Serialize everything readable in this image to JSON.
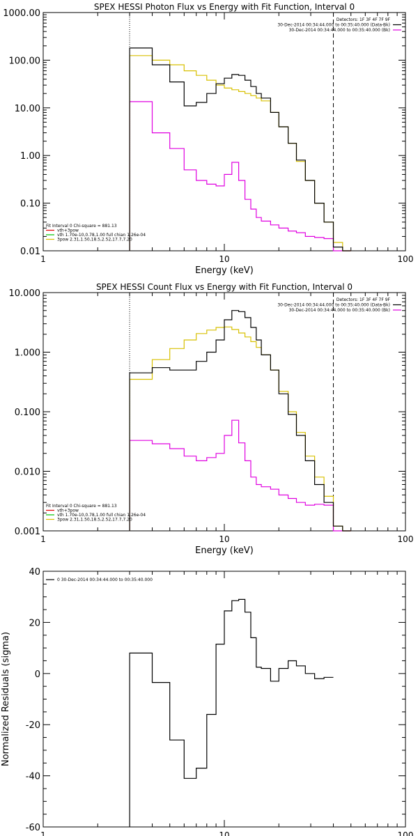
{
  "chart_data": [
    {
      "type": "line",
      "title": "SPEX HESSI Photon Flux vs Energy with Fit Function, Interval 0",
      "xlabel": "Energy (keV)",
      "ylabel": "",
      "xscale": "log",
      "yscale": "log",
      "xlim": [
        1,
        100
      ],
      "ylim": [
        0.01,
        1000
      ],
      "xtick_labels": [
        "1",
        "10",
        "100"
      ],
      "ytick_labels": [
        "0.01",
        "0.10",
        "1.00",
        "10.00",
        "100.00",
        "1000.00"
      ],
      "legend_right": [
        "Detectors: 1F 3F 4F 7F 9F",
        "30-Dec-2014 00:34:44.000 to 00:35:40.000 (Data-Bk)",
        "30-Dec-2014 00:34:44.000 to 00:35:40.000 (Bk)"
      ],
      "legend_left": [
        "Fit Interval 0   Chi-square = 881.13",
        "vth+3pow",
        "vth 1.70e-10,0.78,1.00   full chian 1.26e-04",
        "3pow 2.31,1.50,18.5,2.52,17.7,7.20"
      ],
      "vlines": [
        {
          "x": 3.0,
          "style": "dotted"
        },
        {
          "x": 40.0,
          "style": "dashed"
        }
      ],
      "edges": [
        3.0,
        4.0,
        5.0,
        6.0,
        7.0,
        8.0,
        9.0,
        10.0,
        11.0,
        12.0,
        13.0,
        14.0,
        15.0,
        16.0,
        18.0,
        20.0,
        22.5,
        25.0,
        28.0,
        31.5,
        35.5,
        40.0,
        45.0,
        50.0
      ],
      "series": [
        {
          "name": "Data-Bk",
          "color": "#000000",
          "values": [
            180,
            80,
            35,
            11,
            13,
            20,
            32,
            42,
            50,
            48,
            38,
            28,
            20,
            16,
            8,
            4,
            1.8,
            0.8,
            0.3,
            0.1,
            0.04,
            0.012,
            0.01
          ]
        },
        {
          "name": "vth+3pow",
          "color": "#d8c000",
          "values": [
            125,
            100,
            80,
            60,
            48,
            38,
            30,
            26,
            24,
            22,
            20,
            18,
            16,
            14,
            8,
            4,
            1.8,
            0.75,
            0.3,
            0.1,
            0.04,
            0.015,
            0.01
          ]
        },
        {
          "name": "Bk",
          "color": "#e000e0",
          "values": [
            13.5,
            3,
            1.4,
            0.5,
            0.3,
            0.25,
            0.23,
            0.4,
            0.72,
            0.3,
            0.12,
            0.075,
            0.05,
            0.042,
            0.035,
            0.03,
            0.026,
            0.024,
            0.02,
            0.019,
            0.018,
            0.01,
            0.01
          ]
        }
      ]
    },
    {
      "type": "line",
      "title": "SPEX HESSI Count Flux vs Energy with Fit Function, Interval 0",
      "xlabel": "Energy (keV)",
      "ylabel": "",
      "xscale": "log",
      "yscale": "log",
      "xlim": [
        1,
        100
      ],
      "ylim": [
        0.001,
        10
      ],
      "xtick_labels": [
        "1",
        "10",
        "100"
      ],
      "ytick_labels": [
        "0.001",
        "0.010",
        "0.100",
        "1.000",
        "10.000"
      ],
      "legend_right": [
        "Detectors: 1F 3F 4F 7F 9F",
        "30-Dec-2014 00:34:44.000 to 00:35:40.000 (Data-Bk)",
        "30-Dec-2014 00:34:44.000 to 00:35:40.000 (Bk)"
      ],
      "legend_left": [
        "Fit Interval 0   Chi-square = 881.13",
        "vth+3pow",
        "vth 1.70e-10,0.78,1.00   full chian 1.26e-04",
        "3pow 2.31,1.50,18.5,2.52,17.7,7.20"
      ],
      "vlines": [
        {
          "x": 3.0,
          "style": "dotted"
        },
        {
          "x": 40.0,
          "style": "dashed"
        }
      ],
      "edges": [
        3.0,
        4.0,
        5.0,
        6.0,
        7.0,
        8.0,
        9.0,
        10.0,
        11.0,
        12.0,
        13.0,
        14.0,
        15.0,
        16.0,
        18.0,
        20.0,
        22.5,
        25.0,
        28.0,
        31.5,
        35.5,
        40.0,
        45.0,
        50.0
      ],
      "series": [
        {
          "name": "Data-Bk",
          "color": "#000000",
          "values": [
            0.45,
            0.55,
            0.5,
            0.5,
            0.7,
            1.0,
            1.6,
            3.5,
            5.0,
            4.8,
            3.8,
            2.6,
            1.6,
            0.9,
            0.5,
            0.2,
            0.09,
            0.04,
            0.015,
            0.006,
            0.003,
            0.0012,
            0.001
          ]
        },
        {
          "name": "vth+3pow",
          "color": "#d8c000",
          "values": [
            0.35,
            0.75,
            1.15,
            1.6,
            2.05,
            2.35,
            2.6,
            2.65,
            2.4,
            2.1,
            1.8,
            1.5,
            1.2,
            0.9,
            0.5,
            0.22,
            0.1,
            0.045,
            0.018,
            0.008,
            0.0038,
            0.0012,
            0.001
          ]
        },
        {
          "name": "Bk",
          "color": "#e000e0",
          "values": [
            0.033,
            0.029,
            0.024,
            0.018,
            0.015,
            0.017,
            0.02,
            0.04,
            0.072,
            0.03,
            0.015,
            0.008,
            0.006,
            0.0055,
            0.005,
            0.004,
            0.0035,
            0.003,
            0.0027,
            0.0028,
            0.0027,
            0.001,
            0.001
          ]
        }
      ]
    },
    {
      "type": "line",
      "title": "",
      "xlabel": "Energy (keV)",
      "ylabel": "Normalized Residuals (sigma)",
      "xscale": "log",
      "yscale": "linear",
      "xlim": [
        1,
        100
      ],
      "ylim": [
        -60,
        40
      ],
      "xtick_labels": [
        "1",
        "10",
        "100"
      ],
      "ytick_labels": [
        "-60",
        "-40",
        "-20",
        "0",
        "20",
        "40"
      ],
      "legend_left": [
        "0  30-Dec-2014 00:34:44.000 to 00:35:40.000"
      ],
      "edges": [
        3.0,
        4.0,
        5.0,
        6.0,
        7.0,
        8.0,
        9.0,
        10.0,
        11.0,
        12.0,
        13.0,
        14.0,
        15.0,
        16.0,
        18.0,
        20.0,
        22.5,
        25.0,
        28.0,
        31.5,
        35.5,
        40.0
      ],
      "series": [
        {
          "name": "0",
          "color": "#000000",
          "values": [
            8,
            -3.5,
            -26,
            -41,
            -37,
            -16,
            11.5,
            24.5,
            28.5,
            29,
            24,
            14,
            2.5,
            2,
            -3,
            2,
            5,
            3,
            0,
            -2,
            -1.5
          ]
        }
      ]
    }
  ]
}
